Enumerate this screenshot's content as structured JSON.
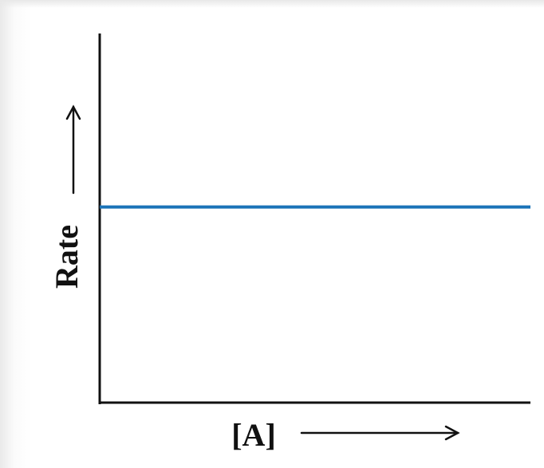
{
  "chart_data": {
    "type": "line",
    "xlabel": "[A]",
    "ylabel": "Rate",
    "x": [
      0,
      1
    ],
    "series": [
      {
        "values": [
          0.53,
          0.53
        ]
      }
    ],
    "xlim": [
      0,
      1
    ],
    "ylim": [
      0,
      1
    ],
    "grid": false,
    "axis_arrows": true
  },
  "colors": {
    "axis": "#111111",
    "line": "#1a73b8"
  }
}
